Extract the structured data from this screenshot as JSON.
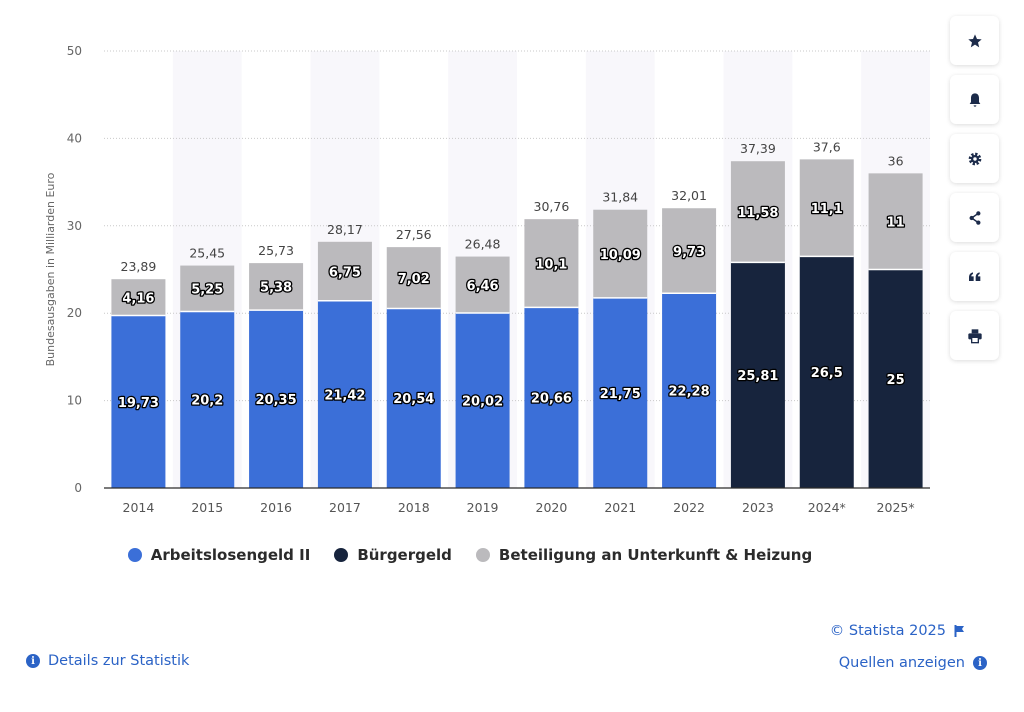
{
  "chart_data": {
    "type": "bar",
    "stacked": true,
    "categories": [
      "2014",
      "2015",
      "2016",
      "2017",
      "2018",
      "2019",
      "2020",
      "2021",
      "2022",
      "2023",
      "2024*",
      "2025*"
    ],
    "series": [
      {
        "name": "Arbeitslosengeld II",
        "color": "#3b6fd8",
        "values": [
          19.73,
          20.2,
          20.35,
          21.42,
          20.54,
          20.02,
          20.66,
          21.75,
          22.28,
          null,
          null,
          null
        ],
        "labels": [
          "19,73",
          "20,2",
          "20,35",
          "21,42",
          "20,54",
          "20,02",
          "20,66",
          "21,75",
          "22,28",
          "",
          "",
          ""
        ]
      },
      {
        "name": "Bürgergeld",
        "color": "#17243d",
        "values": [
          null,
          null,
          null,
          null,
          null,
          null,
          null,
          null,
          null,
          25.81,
          26.5,
          25
        ],
        "labels": [
          "",
          "",
          "",
          "",
          "",
          "",
          "",
          "",
          "",
          "25,81",
          "26,5",
          "25"
        ]
      },
      {
        "name": "Beteiligung an Unterkunft & Heizung",
        "color": "#bbbabd",
        "values": [
          4.16,
          5.25,
          5.38,
          6.75,
          7.02,
          6.46,
          10.1,
          10.09,
          9.73,
          11.58,
          11.1,
          11
        ],
        "labels": [
          "4,16",
          "5,25",
          "5,38",
          "6,75",
          "7,02",
          "6,46",
          "10,1",
          "10,09",
          "9,73",
          "11,58",
          "11,1",
          "11"
        ]
      }
    ],
    "totals": [
      "23,89",
      "25,45",
      "25,73",
      "28,17",
      "27,56",
      "26,48",
      "30,76",
      "31,84",
      "32,01",
      "37,39",
      "37,6",
      "36"
    ],
    "ylabel": "Bundesausgaben in Milliarden Euro",
    "xlabel": "",
    "ylim": [
      0,
      50
    ],
    "yticks": [
      0,
      10,
      20,
      30,
      40,
      50
    ],
    "grid": true,
    "legend_position": "bottom"
  },
  "legend": [
    {
      "label": "Arbeitslosengeld II",
      "color": "#3b6fd8"
    },
    {
      "label": "Bürgergeld",
      "color": "#17243d"
    },
    {
      "label": "Beteiligung an Unterkunft & Heizung",
      "color": "#bbbabd"
    }
  ],
  "toolbar": {
    "icons": [
      "star-icon",
      "bell-icon",
      "gear-icon",
      "share-icon",
      "quote-icon",
      "print-icon"
    ]
  },
  "footer": {
    "copyright": "© Statista 2025",
    "sources": "Quellen anzeigen",
    "details": "Details zur Statistik"
  }
}
